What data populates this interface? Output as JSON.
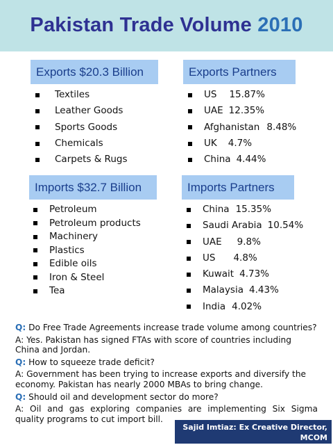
{
  "header": {
    "title": "Pakistan Trade Volume",
    "year": "2010"
  },
  "exports": {
    "title": "Exports $20.3 Billion",
    "items": [
      "Textiles",
      "Leather Goods",
      "Sports Goods",
      "Chemicals",
      "Carpets & Rugs"
    ]
  },
  "exports_partners": {
    "title": "Exports Partners",
    "items": [
      {
        "country": "US",
        "share": "15.87%"
      },
      {
        "country": "UAE",
        "share": "12.35%"
      },
      {
        "country": "Afghanistan",
        "share": "8.48%"
      },
      {
        "country": "UK",
        "share": "4.7%"
      },
      {
        "country": "China",
        "share": "4.44%"
      }
    ]
  },
  "imports": {
    "title": "Imports $32.7 Billion",
    "items": [
      "Petroleum",
      "Petroleum products",
      "Machinery",
      "Plastics",
      "Edible oils",
      "Iron & Steel",
      "Tea"
    ]
  },
  "imports_partners": {
    "title": "Imports Partners",
    "items": [
      {
        "country": "China",
        "share": "15.35%"
      },
      {
        "country": "Saudi Arabia",
        "share": "10.54%"
      },
      {
        "country": "UAE",
        "share": "9.8%"
      },
      {
        "country": "US",
        "share": "4.8%"
      },
      {
        "country": "Kuwait",
        "share": "4.73%"
      },
      {
        "country": "Malaysia",
        "share": "4.43%"
      },
      {
        "country": "India",
        "share": "4.02%"
      }
    ]
  },
  "qa": {
    "q_label": "Q:",
    "items": [
      {
        "q": "Do Free Trade Agreements increase trade volume among countries?",
        "a": "A: Yes. Pakistan has signed FTAs with score of countries including China and Jordan."
      },
      {
        "q": "How to squeeze trade deficit?",
        "a": "A: Government has been trying to increase exports and diversify the economy. Pakistan has nearly 2000 MBAs to bring change."
      },
      {
        "q": "Should oil and development sector do more?",
        "a": "A: Oil and gas exploring companies are implementing Six Sigma quality programs to cut import bill."
      }
    ]
  },
  "footer": {
    "line1": "Sajid Imtiaz: Ex Creative Director,",
    "line2": "MCOM"
  },
  "colors": {
    "header_bg": "#bfe3e6",
    "title": "#2e3192",
    "year": "#2b6fb6",
    "box_bg": "#a8ccf2",
    "footer_bg": "#1f3a73"
  }
}
